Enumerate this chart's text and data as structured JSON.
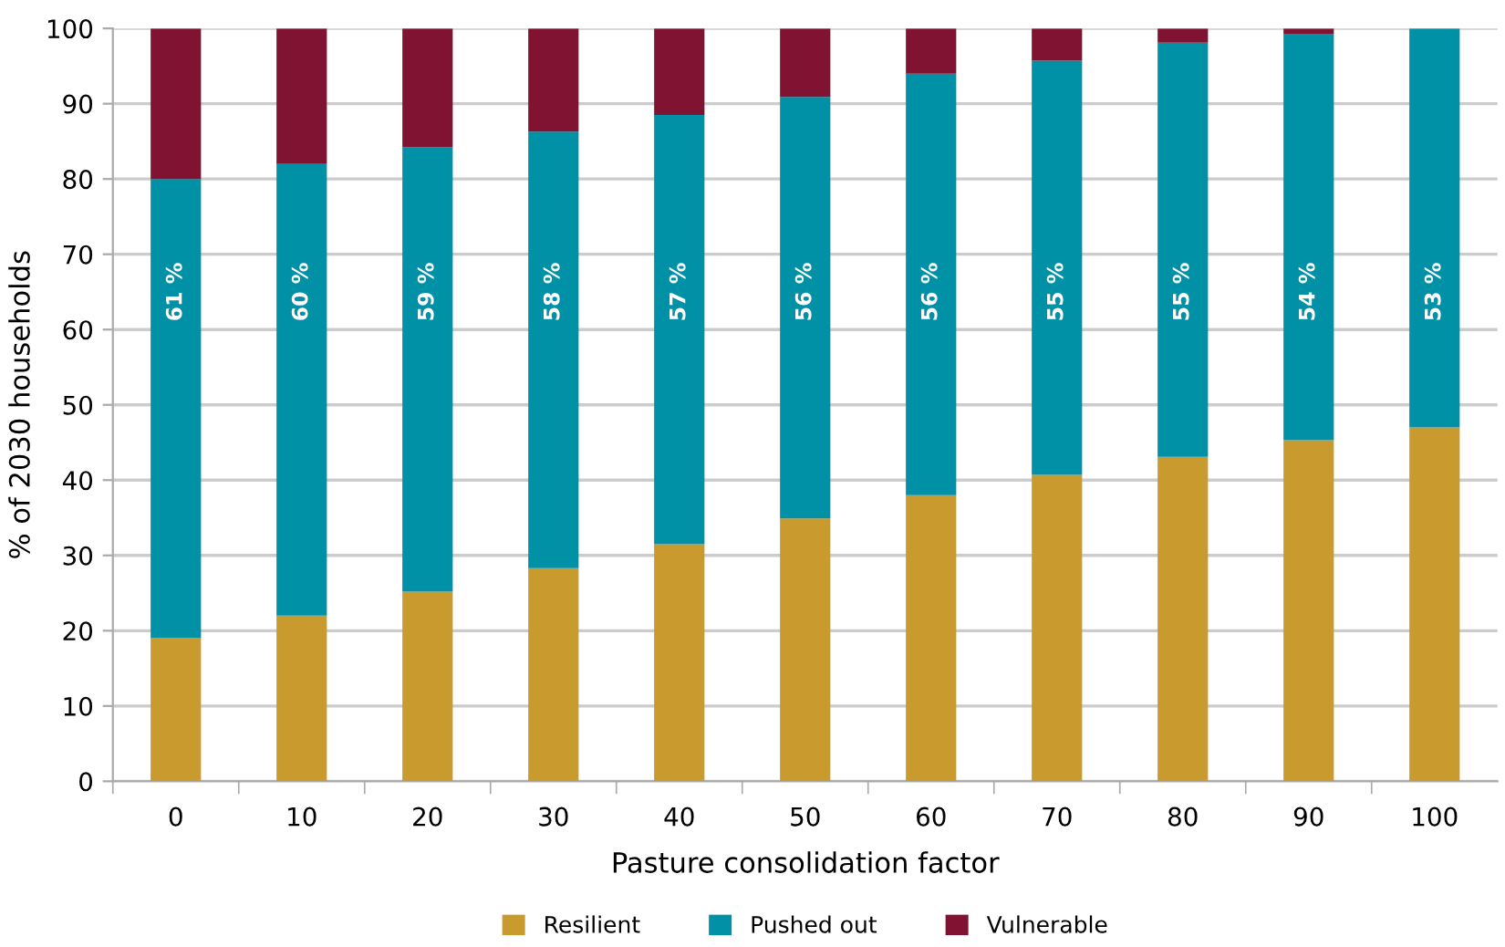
{
  "chart_data": {
    "type": "bar",
    "stacked": true,
    "xlabel": "Pasture consolidation factor",
    "ylabel": "% of 2030 households",
    "categories": [
      "0",
      "10",
      "20",
      "30",
      "40",
      "50",
      "60",
      "70",
      "80",
      "90",
      "100"
    ],
    "series": [
      {
        "name": "Resilient",
        "color": "#c99a2e",
        "values": [
          19,
          22,
          25.2,
          28.3,
          31.5,
          34.9,
          38,
          40.7,
          43.1,
          45.3,
          47
        ]
      },
      {
        "name": "Pushed out",
        "color": "#0091a7",
        "values": [
          61,
          60,
          59,
          58,
          57,
          56,
          56,
          55,
          55,
          54,
          53
        ],
        "value_labels": [
          "61 %",
          "60 %",
          "59 %",
          "58 %",
          "57 %",
          "56 %",
          "56 %",
          "55 %",
          "55 %",
          "54 %",
          "53 %"
        ]
      },
      {
        "name": "Vulnerable",
        "color": "#7f1331",
        "values": [
          20,
          18,
          15.8,
          13.7,
          11.5,
          9.1,
          6,
          4.3,
          1.9,
          0.7,
          0
        ]
      }
    ],
    "ylim": [
      0,
      100
    ],
    "yticks": [
      0,
      10,
      20,
      30,
      40,
      50,
      60,
      70,
      80,
      90,
      100
    ],
    "grid": "y",
    "legend": "bottom"
  }
}
